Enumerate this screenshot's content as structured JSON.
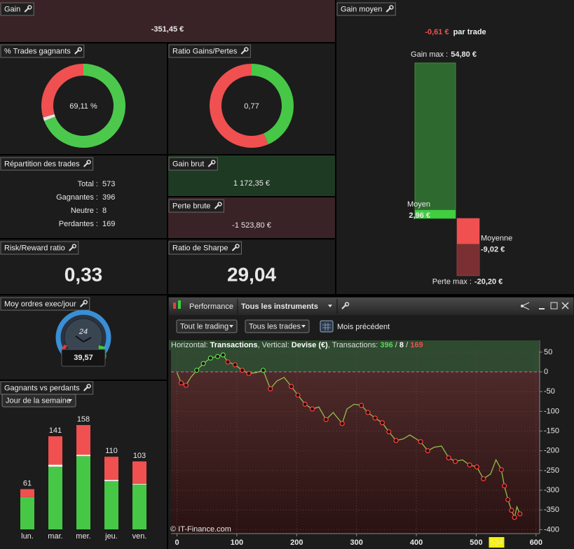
{
  "gain": {
    "title": "Gain",
    "value": "-351,45 €"
  },
  "win_rate": {
    "title": "% Trades gagnants",
    "label": "69,11 %"
  },
  "gain_ratio": {
    "title": "Ratio Gains/Pertes",
    "label": "0,77"
  },
  "repartition": {
    "title": "Répartition des trades",
    "rows": [
      {
        "name": "Total :",
        "value": 573,
        "color": "#e8e8e8"
      },
      {
        "name": "Gagnantes :",
        "value": 396,
        "color": "#4cc94c"
      },
      {
        "name": "Neutre :",
        "value": 8,
        "color": "#e8e8e8"
      },
      {
        "name": "Perdantes :",
        "value": 169,
        "color": "#f05050"
      }
    ]
  },
  "gain_brut": {
    "title": "Gain brut",
    "value": 1172.35,
    "label": "1 172,35 €",
    "color": "#46c846"
  },
  "perte_brute": {
    "title": "Perte brute",
    "value": -1523.8,
    "label": "-1 523,80 €",
    "color": "#f05050"
  },
  "risk_reward": {
    "title": "Risk/Reward ratio",
    "value": "0,33"
  },
  "sharpe": {
    "title": "Ratio de Sharpe",
    "value": "29,04"
  },
  "orders": {
    "title": "Moy ordres exec/jour",
    "gauge_label": "24",
    "value": "39,57"
  },
  "gain_moyen": {
    "title": "Gain moyen",
    "headline": "-0,61 €",
    "suffix": "par trade",
    "ylim": [
      -22.5,
      57
    ],
    "bars": [
      {
        "name": "Gain max :",
        "value": 54.8,
        "label": "54,80 €",
        "color": "#2e6a30"
      },
      {
        "name": "Moyen",
        "value": 2.96,
        "label": "2,96 €",
        "color": "#3fcf3f"
      },
      {
        "name": "Moyenne",
        "value": -9.02,
        "label": "-9,02 €",
        "color": "#f05050"
      },
      {
        "name": "Perte max :",
        "value": -20.2,
        "label": "-20,20 €",
        "color": "#7a3032"
      }
    ]
  },
  "weekday_panel": {
    "title": "Gagnants vs perdants",
    "selector": "Jour de la semaine"
  },
  "chart_data": [
    {
      "type": "bar",
      "stacked": true,
      "categories": [
        "lun.",
        "mar.",
        "mer.",
        "jeu.",
        "ven."
      ],
      "series": [
        {
          "color": "#46c846",
          "values": [
            49,
            95,
            111,
            73,
            68
          ]
        },
        {
          "color": "#ffffff",
          "values": [
            0,
            3,
            2,
            2,
            1
          ]
        },
        {
          "color": "#f05050",
          "values": [
            12,
            43,
            45,
            35,
            34
          ]
        }
      ],
      "totals": [
        61,
        141,
        158,
        110,
        103
      ],
      "ylim": [
        0,
        170
      ]
    },
    {
      "type": "line",
      "toolbar": {
        "tab": "Performance",
        "instruments": "Tous les instruments",
        "filter1": "Tout le trading",
        "filter2": "Tous les trades",
        "period": "Mois précédent"
      },
      "info": [
        {
          "text": "Horizontal: ",
          "color": "#dddddd"
        },
        {
          "text": "Transactions",
          "color": "#ffffff",
          "bold": true
        },
        {
          "text": ", Vertical: ",
          "color": "#dddddd"
        },
        {
          "text": "Devise (€)",
          "color": "#ffffff",
          "bold": true
        },
        {
          "text": ", Transactions: ",
          "color": "#dddddd"
        },
        {
          "text": 396,
          "color": "#5fd35f",
          "bold": true
        },
        {
          "text": " / ",
          "color": "#dddddd"
        },
        {
          "text": 8,
          "color": "#ffffff",
          "bold": true
        },
        {
          "text": " / ",
          "color": "#dddddd"
        },
        {
          "text": 169,
          "color": "#f05050",
          "bold": true
        }
      ],
      "copyright": "© IT-Finance.com",
      "color": "#8fc04a",
      "x": [
        0,
        7,
        15,
        23,
        33,
        44,
        56,
        68,
        77,
        85,
        97,
        109,
        120,
        132,
        144,
        156,
        167,
        179,
        191,
        202,
        214,
        226,
        237,
        249,
        261,
        276,
        284,
        296,
        308,
        319,
        331,
        343,
        354,
        366,
        378,
        389,
        407,
        419,
        430,
        442,
        454,
        465,
        477,
        489,
        501,
        512,
        524,
        533,
        542,
        547,
        553,
        559,
        564,
        568,
        573
      ],
      "values": [
        -2,
        -28,
        -34,
        -14,
        4,
        21,
        35,
        39,
        43,
        25,
        18,
        4,
        -4,
        -2,
        4,
        -43,
        -23,
        -14,
        -37,
        -59,
        -82,
        -94,
        -89,
        -121,
        -103,
        -131,
        -94,
        -82,
        -85,
        -103,
        -117,
        -129,
        -152,
        -174,
        -170,
        -160,
        -177,
        -200,
        -191,
        -188,
        -218,
        -227,
        -223,
        -236,
        -241,
        -271,
        -259,
        -223,
        -248,
        -289,
        -324,
        -351,
        -369,
        -342,
        -360
      ],
      "xlim": [
        -10,
        606
      ],
      "ylim": [
        -410,
        80
      ],
      "xticks": [
        0,
        100,
        200,
        300,
        400,
        500,
        600
      ],
      "yticks": [
        50,
        0,
        -50,
        -100,
        -150,
        -200,
        -250,
        -300,
        -350,
        -400
      ],
      "grid": true,
      "cursor": 534
    }
  ]
}
